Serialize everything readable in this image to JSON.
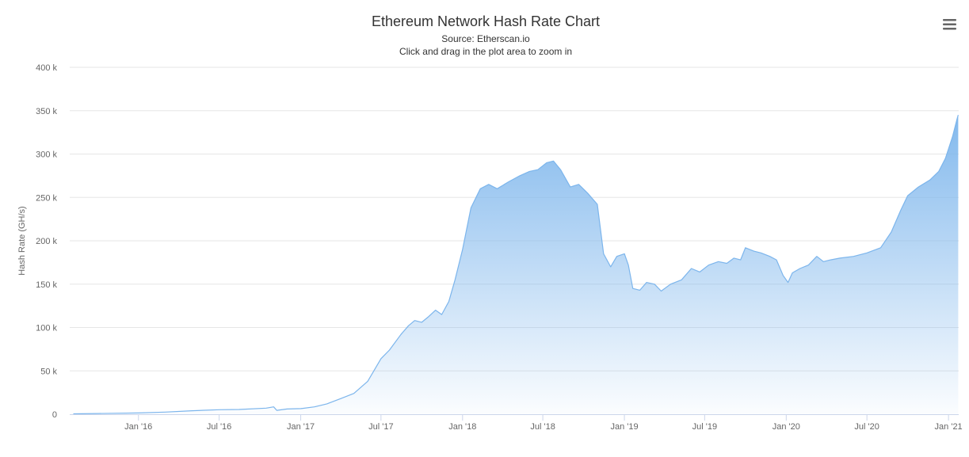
{
  "chart_data": {
    "type": "area",
    "title": "Ethereum Network Hash Rate Chart",
    "subtitle_source": "Source: Etherscan.io",
    "subtitle_hint": "Click and drag in the plot area to zoom in",
    "ylabel": "Hash Rate (GH/s)",
    "xlabel": "",
    "ylim": [
      0,
      400000
    ],
    "xlim": [
      "2015-07-30",
      "2021-01-24"
    ],
    "grid": true,
    "legend": "none",
    "color": "#7cb5ec",
    "y_ticks": [
      {
        "value": 0,
        "label": "0"
      },
      {
        "value": 50000,
        "label": "50 k"
      },
      {
        "value": 100000,
        "label": "100 k"
      },
      {
        "value": 150000,
        "label": "150 k"
      },
      {
        "value": 200000,
        "label": "200 k"
      },
      {
        "value": 250000,
        "label": "250 k"
      },
      {
        "value": 300000,
        "label": "300 k"
      },
      {
        "value": 350000,
        "label": "350 k"
      },
      {
        "value": 400000,
        "label": "400 k"
      }
    ],
    "x_ticks": [
      {
        "date": "2016-01-01",
        "label": "Jan '16"
      },
      {
        "date": "2016-07-01",
        "label": "Jul '16"
      },
      {
        "date": "2017-01-01",
        "label": "Jan '17"
      },
      {
        "date": "2017-07-01",
        "label": "Jul '17"
      },
      {
        "date": "2018-01-01",
        "label": "Jan '18"
      },
      {
        "date": "2018-07-01",
        "label": "Jul '18"
      },
      {
        "date": "2019-01-01",
        "label": "Jan '19"
      },
      {
        "date": "2019-07-01",
        "label": "Jul '19"
      },
      {
        "date": "2020-01-01",
        "label": "Jan '20"
      },
      {
        "date": "2020-07-01",
        "label": "Jul '20"
      },
      {
        "date": "2021-01-01",
        "label": "Jan '21"
      }
    ],
    "series": [
      {
        "points": [
          [
            "2015-08-07",
            500
          ],
          [
            "2015-10-01",
            800
          ],
          [
            "2016-01-01",
            1500
          ],
          [
            "2016-03-01",
            2500
          ],
          [
            "2016-05-01",
            4000
          ],
          [
            "2016-07-01",
            5200
          ],
          [
            "2016-08-15",
            5500
          ],
          [
            "2016-10-15",
            7000
          ],
          [
            "2016-11-01",
            8500
          ],
          [
            "2016-11-08",
            4500
          ],
          [
            "2016-12-01",
            6000
          ],
          [
            "2017-01-01",
            6500
          ],
          [
            "2017-02-01",
            8500
          ],
          [
            "2017-03-01",
            12000
          ],
          [
            "2017-04-01",
            18000
          ],
          [
            "2017-05-01",
            24000
          ],
          [
            "2017-06-01",
            38000
          ],
          [
            "2017-07-01",
            64000
          ],
          [
            "2017-07-20",
            74000
          ],
          [
            "2017-08-15",
            92000
          ],
          [
            "2017-09-01",
            102000
          ],
          [
            "2017-09-15",
            108000
          ],
          [
            "2017-10-01",
            106000
          ],
          [
            "2017-10-15",
            112000
          ],
          [
            "2017-11-01",
            120000
          ],
          [
            "2017-11-15",
            115000
          ],
          [
            "2017-12-01",
            130000
          ],
          [
            "2017-12-15",
            155000
          ],
          [
            "2018-01-01",
            190000
          ],
          [
            "2018-01-20",
            238000
          ],
          [
            "2018-02-10",
            260000
          ],
          [
            "2018-03-01",
            265000
          ],
          [
            "2018-03-20",
            260000
          ],
          [
            "2018-04-15",
            268000
          ],
          [
            "2018-05-10",
            275000
          ],
          [
            "2018-06-01",
            280000
          ],
          [
            "2018-06-20",
            282000
          ],
          [
            "2018-07-10",
            290000
          ],
          [
            "2018-07-25",
            292000
          ],
          [
            "2018-08-10",
            282000
          ],
          [
            "2018-09-01",
            262000
          ],
          [
            "2018-09-20",
            265000
          ],
          [
            "2018-10-10",
            255000
          ],
          [
            "2018-11-01",
            242000
          ],
          [
            "2018-11-15",
            185000
          ],
          [
            "2018-12-01",
            170000
          ],
          [
            "2018-12-15",
            182000
          ],
          [
            "2019-01-01",
            185000
          ],
          [
            "2019-01-10",
            172000
          ],
          [
            "2019-01-20",
            145000
          ],
          [
            "2019-02-05",
            143000
          ],
          [
            "2019-02-20",
            152000
          ],
          [
            "2019-03-10",
            150000
          ],
          [
            "2019-03-25",
            142000
          ],
          [
            "2019-04-15",
            150000
          ],
          [
            "2019-05-10",
            155000
          ],
          [
            "2019-06-01",
            168000
          ],
          [
            "2019-06-20",
            164000
          ],
          [
            "2019-07-10",
            172000
          ],
          [
            "2019-08-01",
            176000
          ],
          [
            "2019-08-20",
            174000
          ],
          [
            "2019-09-05",
            180000
          ],
          [
            "2019-09-20",
            178000
          ],
          [
            "2019-10-01",
            192000
          ],
          [
            "2019-10-20",
            188000
          ],
          [
            "2019-11-05",
            186000
          ],
          [
            "2019-11-25",
            182000
          ],
          [
            "2019-12-10",
            178000
          ],
          [
            "2019-12-25",
            160000
          ],
          [
            "2020-01-05",
            152000
          ],
          [
            "2020-01-15",
            163000
          ],
          [
            "2020-02-01",
            168000
          ],
          [
            "2020-02-20",
            172000
          ],
          [
            "2020-03-10",
            182000
          ],
          [
            "2020-03-25",
            176000
          ],
          [
            "2020-04-10",
            178000
          ],
          [
            "2020-05-01",
            180000
          ],
          [
            "2020-06-01",
            182000
          ],
          [
            "2020-07-01",
            186000
          ],
          [
            "2020-08-01",
            192000
          ],
          [
            "2020-08-25",
            210000
          ],
          [
            "2020-09-15",
            235000
          ],
          [
            "2020-10-01",
            252000
          ],
          [
            "2020-10-25",
            262000
          ],
          [
            "2020-11-20",
            270000
          ],
          [
            "2020-12-10",
            280000
          ],
          [
            "2020-12-25",
            295000
          ],
          [
            "2021-01-10",
            320000
          ],
          [
            "2021-01-20",
            340000
          ],
          [
            "2021-01-23",
            345000
          ]
        ]
      }
    ]
  },
  "menu": {
    "icon": "hamburger-menu-icon"
  }
}
